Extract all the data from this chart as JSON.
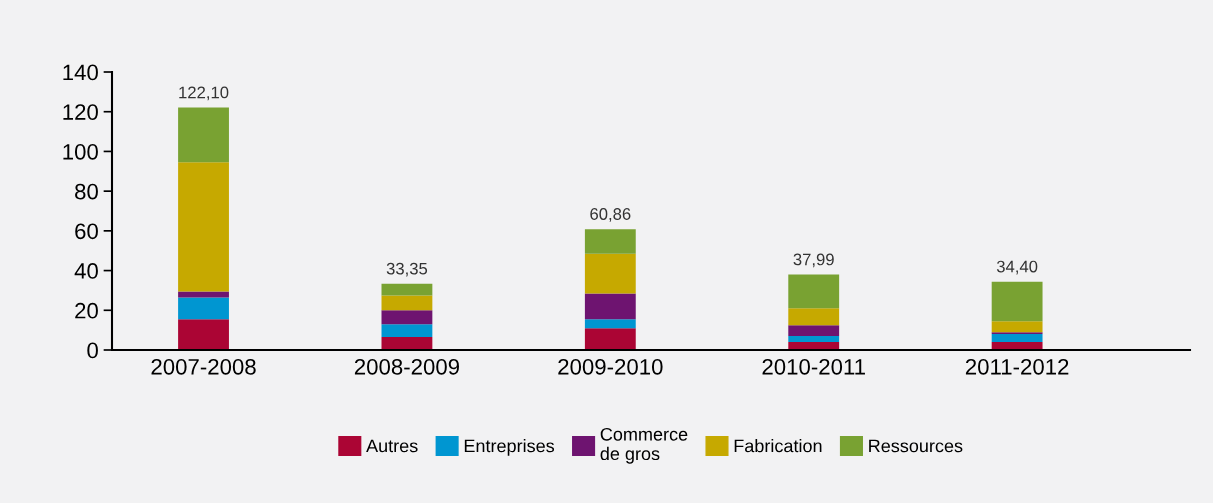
{
  "chart_data": {
    "type": "bar",
    "stacked": true,
    "categories": [
      "2007-2008",
      "2008-2009",
      "2009-2010",
      "2010-2011",
      "2011-2012"
    ],
    "series": [
      {
        "name": "Autres",
        "color": "#ab0534",
        "values": [
          15.5,
          6.5,
          11,
          4,
          4
        ]
      },
      {
        "name": "Entreprises",
        "color": "#0096d1",
        "values": [
          11,
          6.5,
          4.5,
          3,
          4
        ]
      },
      {
        "name": "Commerce\nde gros",
        "color": "#6e1470",
        "values": [
          3,
          7,
          13,
          5.5,
          1
        ]
      },
      {
        "name": "Fabrication",
        "color": "#c6a900",
        "values": [
          65,
          7.5,
          20,
          8.5,
          5.5
        ]
      },
      {
        "name": "Ressources",
        "color": "#79a232",
        "values": [
          27.6,
          5.85,
          12.36,
          16.99,
          19.9
        ]
      }
    ],
    "totals": [
      "122,10",
      "33,35",
      "60,86",
      "37,99",
      "34,40"
    ],
    "ylim": [
      0,
      140
    ],
    "yticks": [
      0,
      20,
      40,
      60,
      80,
      100,
      120,
      140
    ],
    "grid": false,
    "legend": "bottom"
  }
}
